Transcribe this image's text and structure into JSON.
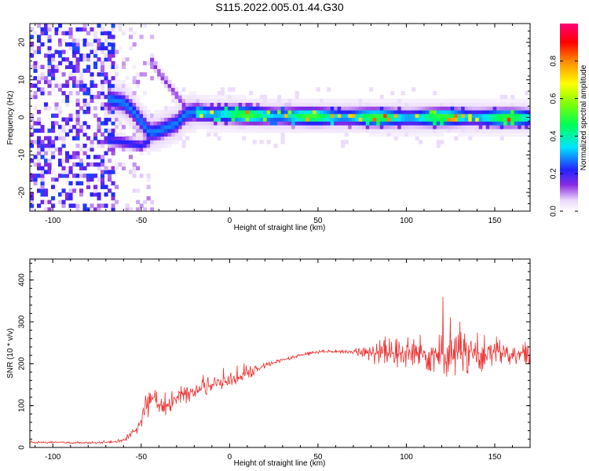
{
  "title": "S115.2022.005.01.44.G30",
  "chart_data": [
    {
      "type": "heatmap",
      "xlabel": "Height of straight line (km)",
      "ylabel": "Frequency (Hz)",
      "xlim": [
        -113,
        170
      ],
      "ylim": [
        -25,
        25
      ],
      "xticks": [
        -100,
        -50,
        0,
        50,
        100,
        150
      ],
      "yticks": [
        -20,
        -10,
        0,
        10,
        20
      ],
      "colorbar": {
        "label": "Normalized spectral amplitude",
        "range": [
          0,
          1
        ],
        "ticks": [
          "0.0",
          "0.2",
          "0.4",
          "0.6",
          "0.8"
        ],
        "colormap": "hsv-rainbow (white-violet-blue-cyan-green-yellow-red-magenta)"
      },
      "ridge": {
        "description": "dominant-frequency ridge",
        "x": [
          -68,
          -60,
          -55,
          -50,
          -45,
          -40,
          -35,
          -30,
          -25,
          -20,
          -10,
          0,
          25,
          50,
          75,
          100,
          125,
          150,
          168
        ],
        "y": [
          5,
          4,
          2,
          -1,
          -4,
          -3.5,
          -2.5,
          -1.5,
          1,
          1.5,
          1,
          1,
          0.5,
          0.3,
          0.2,
          0,
          0.2,
          0,
          0
        ]
      },
      "lower_branch": {
        "x": [
          -68,
          -60,
          -55,
          -50,
          -45
        ],
        "y": [
          -6,
          -6.5,
          -7,
          -7.5,
          -6
        ]
      },
      "upper_branch": {
        "x": [
          -45,
          -40,
          -35,
          -30,
          -25
        ],
        "y": [
          16,
          12,
          9,
          6,
          3
        ]
      }
    },
    {
      "type": "line",
      "xlabel": "Height of straight line (km)",
      "ylabel": "SNR (10 * v/v)",
      "xlim": [
        -113,
        170
      ],
      "ylim": [
        0,
        450
      ],
      "xticks": [
        -100,
        -50,
        0,
        50,
        100,
        150
      ],
      "yticks": [
        0,
        100,
        200,
        300,
        400
      ],
      "color": "#ee3333",
      "series": [
        {
          "x": [
            -113,
            -100,
            -80,
            -65,
            -58,
            -52,
            -47,
            -43,
            -38,
            -30,
            -20,
            -10,
            0,
            10,
            20,
            30,
            40,
            50,
            60,
            70,
            78,
            85,
            95,
            105,
            115,
            125,
            135,
            145,
            155,
            170
          ],
          "y": [
            12,
            12,
            11,
            13,
            22,
            45,
            95,
            120,
            95,
            120,
            135,
            150,
            160,
            175,
            195,
            210,
            220,
            228,
            230,
            228,
            225,
            225,
            225,
            225,
            225,
            225,
            225,
            225,
            225,
            225
          ],
          "amplitude": [
            4,
            4,
            4,
            5,
            10,
            20,
            45,
            60,
            45,
            40,
            40,
            35,
            30,
            22,
            12,
            8,
            8,
            8,
            7,
            7,
            30,
            60,
            70,
            75,
            85,
            110,
            90,
            75,
            55,
            45
          ]
        }
      ]
    }
  ]
}
